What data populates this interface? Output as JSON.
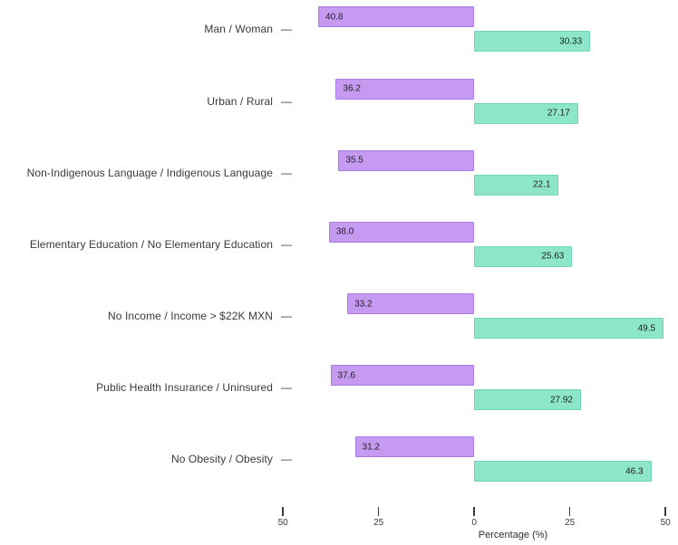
{
  "chart_data": {
    "type": "bar",
    "variant": "diverging-horizontal",
    "title": "",
    "xlabel": "Percentage (%)",
    "grid": false,
    "legend": "none",
    "xrange": [
      -50,
      50
    ],
    "categories": [
      "Man / Woman",
      "Urban / Rural",
      "Non-Indigenous Language / Indigenous Language",
      "Elementary Education / No Elementary Education",
      "No Income / Income > $22K MXN",
      "Public Health Insurance / Uninsured",
      "No Obesity / Obesity"
    ],
    "category_tick_glyph": "—",
    "series": [
      {
        "name": "left",
        "direction": "left",
        "color": "#c79af2",
        "values": [
          40.8,
          36.2,
          35.5,
          38.0,
          33.2,
          37.6,
          31.2
        ],
        "labels": [
          "40.8",
          "36.2",
          "35.5",
          "38.0",
          "33.2",
          "37.6",
          "31.2"
        ]
      },
      {
        "name": "right",
        "direction": "right",
        "color": "#8de6ca",
        "values": [
          30.33,
          27.17,
          22.1,
          25.63,
          49.5,
          27.92,
          46.3
        ],
        "labels": [
          "30.33",
          "27.17",
          "22.1",
          "25.63",
          "49.5",
          "27.92",
          "46.3"
        ]
      }
    ],
    "x_ticks": [
      {
        "value": -50,
        "label": "50"
      },
      {
        "value": -25,
        "label": "25"
      },
      {
        "value": 0,
        "label": "0"
      },
      {
        "value": 25,
        "label": "25"
      },
      {
        "value": 50,
        "label": "50"
      }
    ]
  },
  "colors": {
    "background": "#ffffff",
    "bar_left": "#c79af2",
    "bar_right": "#8de6ca",
    "category_text": "#3a3a3a",
    "value_text": "#1f1f1f",
    "axis_text": "#3c3c3c"
  }
}
